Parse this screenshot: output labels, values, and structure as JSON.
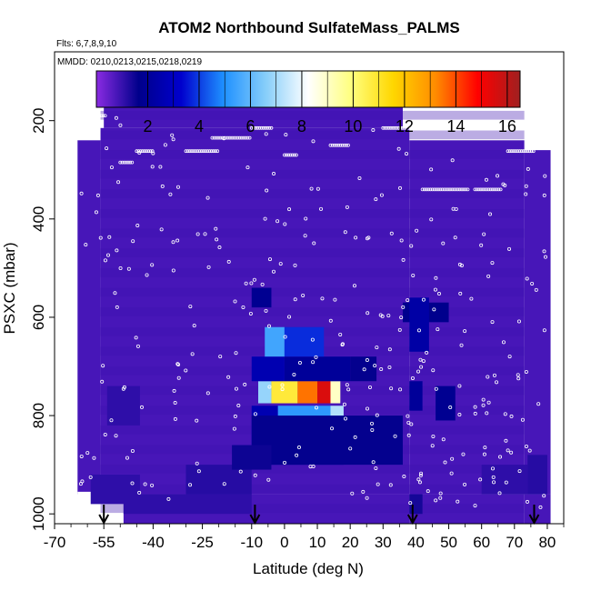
{
  "chart_data": {
    "type": "heatmap",
    "title": "ATOM2 Northbound SulfateMass_PALMS",
    "annotations": [
      "Flts: 6,7,8,9,10",
      "MMDD: 0210,0213,0215,0218,0219"
    ],
    "xlabel": "Latitude (deg N)",
    "ylabel": "PSXC (mbar)",
    "xlim": [
      -70,
      85
    ],
    "ylim": [
      1020,
      60
    ],
    "y_reversed": true,
    "x_ticks": [
      -70,
      -55,
      -40,
      -25,
      -10,
      0,
      10,
      20,
      30,
      40,
      50,
      60,
      70,
      80
    ],
    "y_ticks": [
      200,
      400,
      600,
      800,
      1000
    ],
    "colorbar": {
      "ticks": [
        2,
        4,
        6,
        8,
        10,
        12,
        14,
        16
      ],
      "range": [
        0,
        16.5
      ],
      "colors": [
        "#8a2be2",
        "#00008b",
        "#0000cd",
        "#1e90ff",
        "#87cefa",
        "#ffffff",
        "#ffff80",
        "#ffd700",
        "#ff8c00",
        "#ff0000",
        "#a02020"
      ]
    },
    "background_value": 0.8,
    "cells": [
      {
        "x0": -49,
        "x1": -10,
        "y0": 960,
        "y1": 1000,
        "value": 1.1
      },
      {
        "x0": -30,
        "x1": -10,
        "y0": 900,
        "y1": 960,
        "value": 1.2
      },
      {
        "x0": -14,
        "x1": 18,
        "y0": 860,
        "y1": 900,
        "value": 2.2
      },
      {
        "x0": -10,
        "x1": 20,
        "y0": 820,
        "y1": 860,
        "value": 3.0
      },
      {
        "x0": -10,
        "x1": -2,
        "y0": 780,
        "y1": 820,
        "value": 2.6
      },
      {
        "x0": -2,
        "x1": 14,
        "y0": 780,
        "y1": 820,
        "value": 5.2
      },
      {
        "x0": 14,
        "x1": 18,
        "y0": 780,
        "y1": 820,
        "value": 7.2
      },
      {
        "x0": -8,
        "x1": -4,
        "y0": 730,
        "y1": 775,
        "value": 6.8
      },
      {
        "x0": -4,
        "x1": 4,
        "y0": 730,
        "y1": 775,
        "value": 10.8
      },
      {
        "x0": 4,
        "x1": 10,
        "y0": 730,
        "y1": 775,
        "value": 13.5
      },
      {
        "x0": 10,
        "x1": 14,
        "y0": 730,
        "y1": 775,
        "value": 15.5
      },
      {
        "x0": 14,
        "x1": 17,
        "y0": 730,
        "y1": 775,
        "value": 9.0
      },
      {
        "x0": -10,
        "x1": 0,
        "y0": 680,
        "y1": 730,
        "value": 2.6
      },
      {
        "x0": 0,
        "x1": 20,
        "y0": 680,
        "y1": 730,
        "value": 2.0
      },
      {
        "x0": 20,
        "x1": 28,
        "y0": 680,
        "y1": 730,
        "value": 1.6
      },
      {
        "x0": -6,
        "x1": 0,
        "y0": 620,
        "y1": 680,
        "value": 5.5
      },
      {
        "x0": 0,
        "x1": 12,
        "y0": 620,
        "y1": 680,
        "value": 3.8
      },
      {
        "x0": -10,
        "x1": 36,
        "y0": 800,
        "y1": 900,
        "value": 1.6
      },
      {
        "x0": -16,
        "x1": -4,
        "y0": 860,
        "y1": 910,
        "value": 1.5
      },
      {
        "x0": -10,
        "x1": -4,
        "y0": 540,
        "y1": 580,
        "value": 1.8
      },
      {
        "x0": 36,
        "x1": 50,
        "y0": 570,
        "y1": 610,
        "value": 1.7
      },
      {
        "x0": 38,
        "x1": 44,
        "y0": 560,
        "y1": 670,
        "value": 2.3
      },
      {
        "x0": 46,
        "x1": 52,
        "y0": 740,
        "y1": 810,
        "value": 1.8
      },
      {
        "x0": 38,
        "x1": 42,
        "y0": 730,
        "y1": 790,
        "value": 2.0
      },
      {
        "x0": 38,
        "x1": 42,
        "y0": 960,
        "y1": 1000,
        "value": 1.4
      },
      {
        "x0": -54,
        "x1": -44,
        "y0": 740,
        "y1": 820,
        "value": 1.1
      },
      {
        "x0": -59,
        "x1": -44,
        "y0": 920,
        "y1": 980,
        "value": 1.1
      },
      {
        "x0": 60,
        "x1": 74,
        "y0": 900,
        "y1": 960,
        "value": 1.1
      },
      {
        "x0": 74,
        "x1": 80,
        "y0": 880,
        "y1": 960,
        "value": 1.2
      }
    ],
    "arrows_x": [
      -55,
      -9,
      39,
      76
    ]
  }
}
